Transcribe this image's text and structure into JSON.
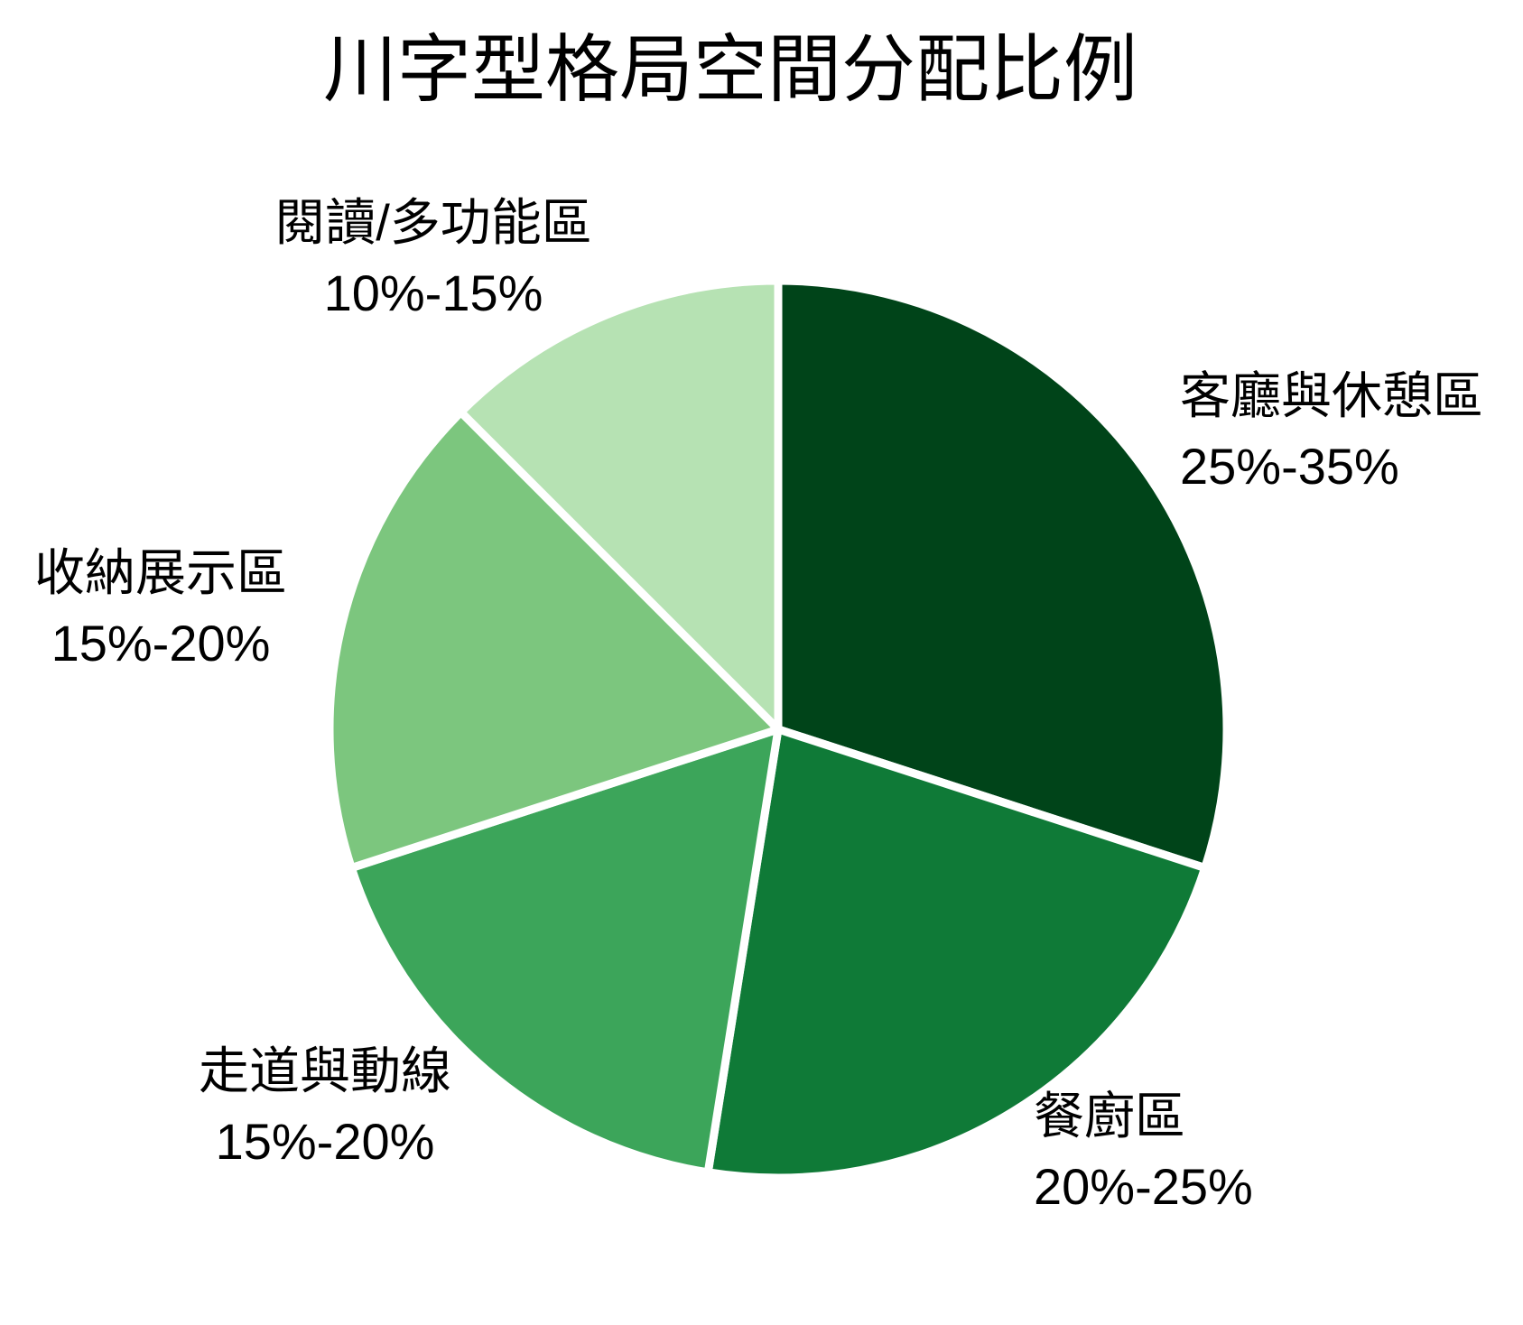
{
  "title": "川字型格局空間分配比例",
  "chart_data": {
    "type": "pie",
    "title": "川字型格局空間分配比例",
    "start_angle": "12-oclock",
    "direction": "clockwise",
    "legend_position": "none",
    "grid": false,
    "background": "#ffffff",
    "divider_color": "#ffffff",
    "text_color": "#000000",
    "slices": [
      {
        "label": "客廳與休憩區",
        "range": "25%-35%",
        "value": 30,
        "color": "#004419"
      },
      {
        "label": "餐廚區",
        "range": "20%-25%",
        "value": 22.5,
        "color": "#0f7a37"
      },
      {
        "label": "走道與動線",
        "range": "15%-20%",
        "value": 17.5,
        "color": "#3ca55a"
      },
      {
        "label": "收納展示區",
        "range": "15%-20%",
        "value": 17.5,
        "color": "#7cc67e"
      },
      {
        "label": "閱讀/多功能區",
        "range": "10%-15%",
        "value": 12.5,
        "color": "#b6e2b3"
      }
    ]
  }
}
